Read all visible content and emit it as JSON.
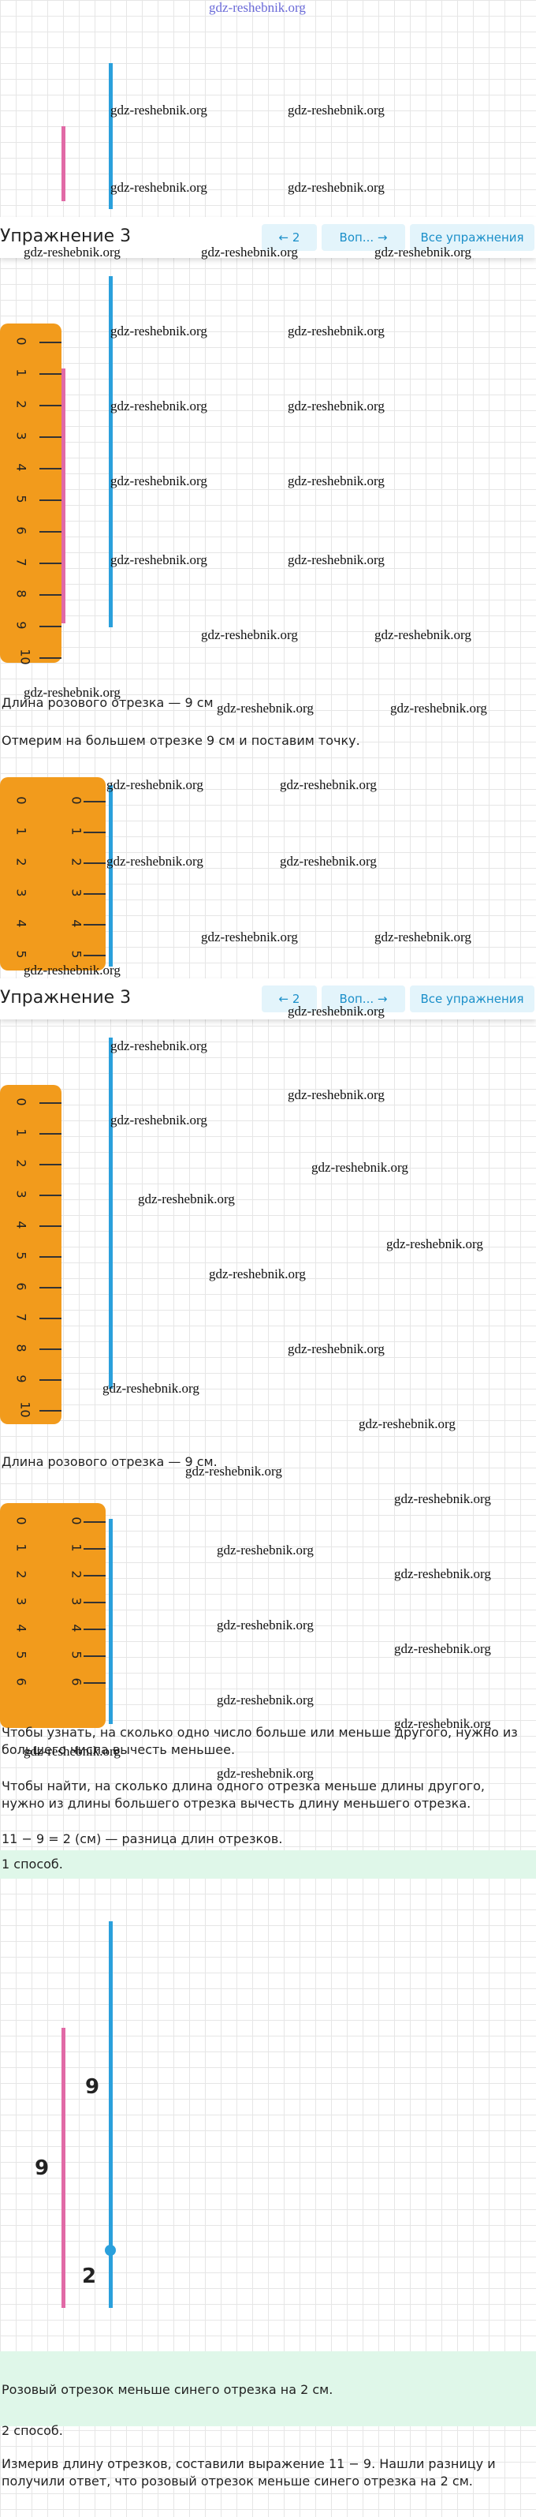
{
  "site": "gdz-reshebnik.org",
  "header": {
    "title": "Упражнение 3",
    "prev": "2",
    "middle": "Воп...",
    "all": "Все упражнения"
  },
  "rulers": [
    {
      "labels": [
        "0",
        "1",
        "2",
        "3",
        "4",
        "5",
        "6",
        "7",
        "8",
        "9",
        "10"
      ]
    },
    {
      "labels": [
        "0",
        "1",
        "2",
        "3",
        "4",
        "5"
      ]
    },
    {
      "labels": [
        "0",
        "1",
        "2",
        "3",
        "4",
        "5",
        "6",
        "7",
        "8",
        "9",
        "10"
      ]
    },
    {
      "labels": [
        "0",
        "1",
        "2",
        "3",
        "4",
        "5",
        "6"
      ]
    }
  ],
  "texts": {
    "pink_length": "Длина розового отрезка — 9 см",
    "measure": "Отмерим на большем отрезке 9 см и поставим точку.",
    "pink_length2": "Длина розового отрезка — 9 см.",
    "rule1": "Чтобы узнать, на сколько одно число больше или меньше другого, нужно из большего числа вычесть меньшее.",
    "rule2": "Чтобы найти, на сколько длина одного отрезка меньше длины другого, нужно из длины большего отрезка вычесть длину меньшего отрезка.",
    "calc": "11 − 9 = 2 (см) — разница длин отрезков.",
    "result": "Розовый отрезок меньше синего отрезка на 2 см.",
    "method1": "1 способ.",
    "answer": "Розовый отрезок меньше синего отрезка на 2 см.",
    "method2": "2 способ.",
    "explain": "Измерив длину отрезков, составили выражение 11 − 9. Нашли разницу и получили ответ, что розовый отрезок меньше синего отрезка на 2 см."
  },
  "diagram": {
    "blue_label": "9",
    "pink_label": "9",
    "diff_label": "2"
  },
  "watermarks": [
    "gdz-reshebnik.org",
    "gdz-reshebnik.org",
    "gdz-reshebnik.org",
    "gdz-reshebnik.org",
    "gdz-reshebnik.org",
    "gdz-reshebnik.org",
    "gdz-reshebnik.org",
    "gdz-reshebnik.org",
    "gdz-reshebnik.org",
    "gdz-reshebnik.org",
    "gdz-reshebnik.org",
    "gdz-reshebnik.org",
    "gdz-reshebnik.org",
    "gdz-reshebnik.org",
    "gdz-reshebnik.org",
    "gdz-reshebnik.org",
    "gdz-reshebnik.org",
    "gdz-reshebnik.org",
    "gdz-reshebnik.org",
    "gdz-reshebnik.org",
    "gdz-reshebnik.org",
    "gdz-reshebnik.org",
    "gdz-reshebnik.org",
    "gdz-reshebnik.org",
    "gdz-reshebnik.org",
    "gdz-reshebnik.org",
    "gdz-reshebnik.org",
    "gdz-reshebnik.org",
    "gdz-reshebnik.org",
    "gdz-reshebnik.org",
    "gdz-reshebnik.org",
    "gdz-reshebnik.org",
    "gdz-reshebnik.org",
    "gdz-reshebnik.org",
    "gdz-reshebnik.org",
    "gdz-reshebnik.org",
    "gdz-reshebnik.org",
    "gdz-reshebnik.org",
    "gdz-reshebnik.org",
    "gdz-reshebnik.org",
    "gdz-reshebnik.org",
    "gdz-reshebnik.org",
    "gdz-reshebnik.org",
    "gdz-reshebnik.org",
    "gdz-reshebnik.org",
    "gdz-reshebnik.org",
    "gdz-reshebnik.org",
    "gdz-reshebnik.org"
  ]
}
